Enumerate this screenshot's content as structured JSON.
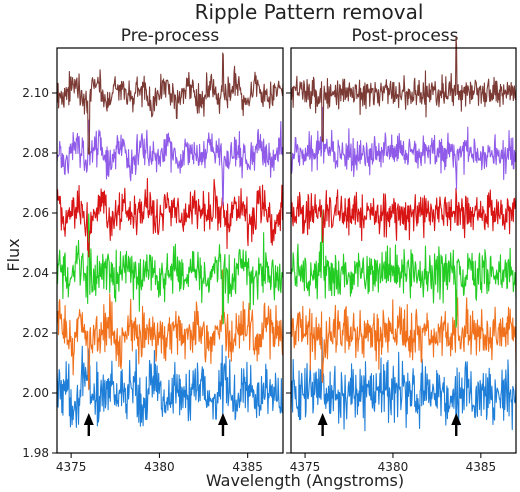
{
  "chart_data": {
    "type": "line",
    "title": "Ripple Pattern removal",
    "xlabel": "Wavelength (Angstroms)",
    "ylabel": "Flux",
    "xlim": [
      4374.2,
      4387.0
    ],
    "ylim": [
      1.98,
      2.115
    ],
    "xticks": [
      4375,
      4380,
      4385
    ],
    "yticks": [
      1.98,
      2.0,
      2.02,
      2.04,
      2.06,
      2.08,
      2.1
    ],
    "ytick_labels": [
      "1.98",
      "2.00",
      "2.02",
      "2.04",
      "2.06",
      "2.08",
      "2.10"
    ],
    "grid": false,
    "panels": [
      {
        "title": "Pre-process"
      },
      {
        "title": "Post-process"
      }
    ],
    "series": [
      {
        "offset": 2.0,
        "color": "#1f7fd8",
        "noise": 0.0048
      },
      {
        "offset": 2.02,
        "color": "#f0701c",
        "noise": 0.0042
      },
      {
        "offset": 2.04,
        "color": "#22cc22",
        "noise": 0.004
      },
      {
        "offset": 2.06,
        "color": "#d81414",
        "noise": 0.0036
      },
      {
        "offset": 2.08,
        "color": "#8f5be8",
        "noise": 0.003
      },
      {
        "offset": 2.1,
        "color": "#7b3a34",
        "noise": 0.0026
      }
    ],
    "features": [
      4376.0,
      4383.6
    ],
    "arrows_at": [
      4376.0,
      4383.6
    ]
  }
}
